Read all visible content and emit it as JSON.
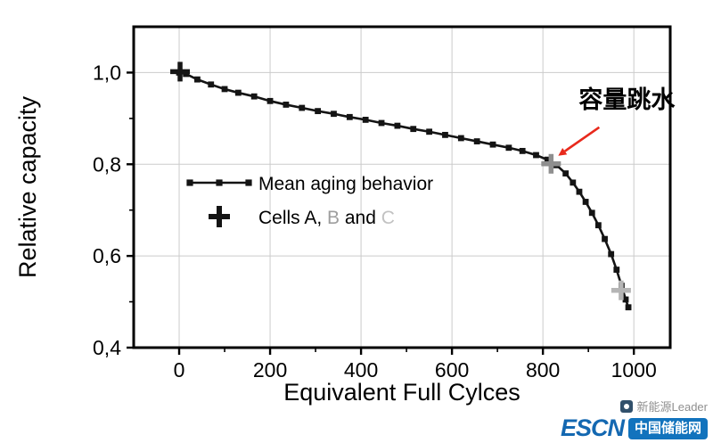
{
  "chart_data": {
    "type": "line",
    "title": "",
    "xlabel": "Equivalent Full Cylces",
    "ylabel": "Relative capacity",
    "xlim": [
      -100,
      1080
    ],
    "ylim": [
      0.4,
      1.1
    ],
    "grid": true,
    "grid_color": "#cbcbcb",
    "x_ticks": [
      0,
      200,
      400,
      600,
      800,
      1000
    ],
    "x_tick_labels": [
      "0",
      "200",
      "400",
      "600",
      "800",
      "1000"
    ],
    "x_minor_ticks": [
      100,
      300,
      500,
      700,
      900
    ],
    "y_ticks": [
      0.4,
      0.6,
      0.8,
      1.0
    ],
    "y_tick_labels": [
      "0,4",
      "0,6",
      "0,8",
      "1,0"
    ],
    "y_minor_ticks": [
      0.5,
      0.7,
      0.9
    ],
    "series": [
      {
        "name": "Mean aging behavior",
        "type": "line+square",
        "color": "#141414",
        "points": [
          [
            0,
            1.0
          ],
          [
            15,
            0.997
          ],
          [
            40,
            0.985
          ],
          [
            70,
            0.974
          ],
          [
            100,
            0.964
          ],
          [
            130,
            0.956
          ],
          [
            165,
            0.948
          ],
          [
            200,
            0.938
          ],
          [
            235,
            0.93
          ],
          [
            270,
            0.923
          ],
          [
            305,
            0.916
          ],
          [
            340,
            0.91
          ],
          [
            375,
            0.903
          ],
          [
            410,
            0.897
          ],
          [
            445,
            0.89
          ],
          [
            480,
            0.884
          ],
          [
            515,
            0.877
          ],
          [
            550,
            0.871
          ],
          [
            585,
            0.864
          ],
          [
            620,
            0.857
          ],
          [
            655,
            0.85
          ],
          [
            690,
            0.843
          ],
          [
            725,
            0.836
          ],
          [
            755,
            0.829
          ],
          [
            785,
            0.82
          ],
          [
            810,
            0.81
          ],
          [
            830,
            0.798
          ],
          [
            850,
            0.78
          ],
          [
            866,
            0.76
          ],
          [
            880,
            0.74
          ],
          [
            894,
            0.718
          ],
          [
            908,
            0.694
          ],
          [
            922,
            0.667
          ],
          [
            936,
            0.637
          ],
          [
            950,
            0.604
          ],
          [
            962,
            0.57
          ],
          [
            973,
            0.535
          ],
          [
            982,
            0.505
          ],
          [
            988,
            0.488
          ]
        ]
      },
      {
        "name": "Cells A, B and C",
        "type": "plus",
        "markers": [
          {
            "cell": "A",
            "x": 2,
            "y": 1.002,
            "color": "#161616"
          },
          {
            "cell": "B",
            "x": 818,
            "y": 0.801,
            "color": "#8f8f8f"
          },
          {
            "cell": "C",
            "x": 972,
            "y": 0.525,
            "color": "#b5b5b5"
          }
        ]
      }
    ],
    "legend": {
      "position": "inside-left-middle",
      "item1": "Mean aging behavior",
      "item2_prefix": "Cells A,  ",
      "item2_b": "B",
      "item2_and": " and ",
      "item2_c": "C",
      "color_b": "#9e9e9e",
      "color_c": "#c2c2c2"
    },
    "annotation": {
      "text": "容量跳水",
      "color": "#e8291c",
      "target": {
        "x": 818,
        "y": 0.801
      }
    }
  },
  "watermark": {
    "source_line": "新能源Leader",
    "logo_text": "ESCN",
    "logo_badge": "中国储能网",
    "logo_color": "#1273bd"
  }
}
